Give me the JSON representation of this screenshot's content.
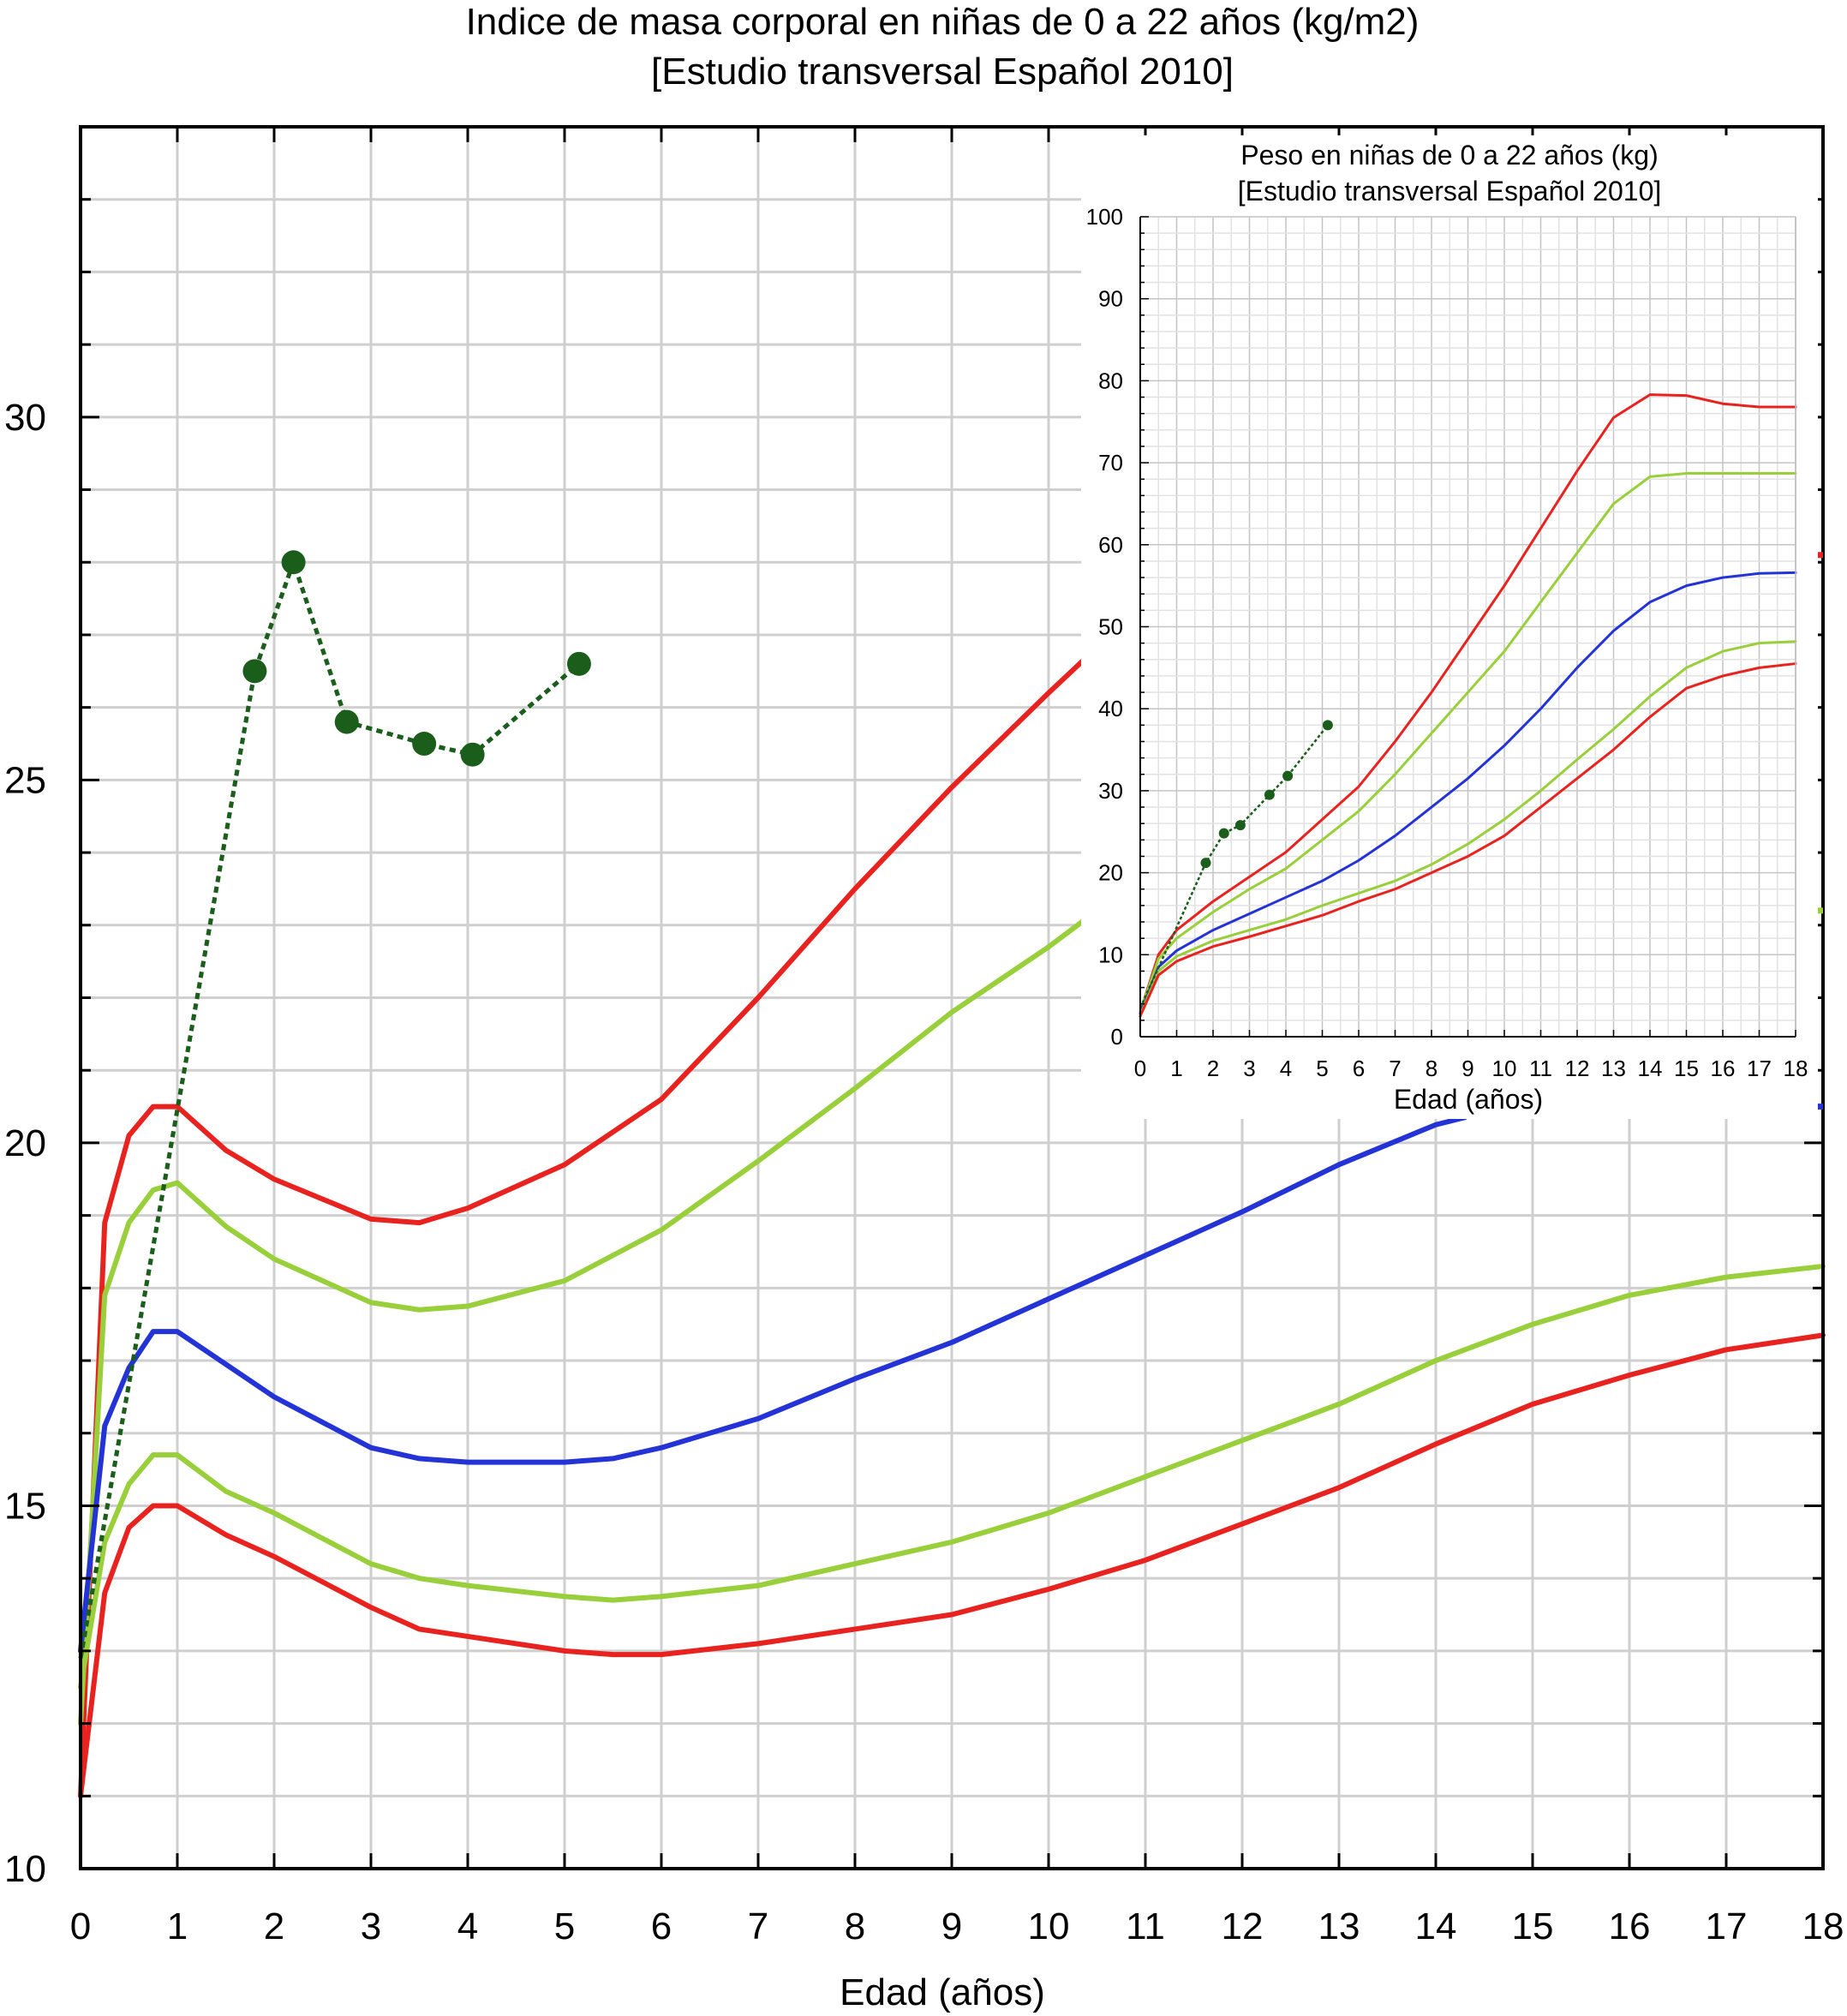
{
  "chart_data": [
    {
      "type": "line",
      "title": "Indice de masa corporal en niñas de 0 a 22 años (kg/m2)",
      "subtitle": "[Estudio transversal Español 2010]",
      "xlabel": "Edad (años)",
      "ylabel": "",
      "xlim": [
        0,
        18
      ],
      "ylim": [
        10,
        34
      ],
      "x_ticks": [
        "0",
        "1",
        "2",
        "3",
        "4",
        "5",
        "6",
        "7",
        "8",
        "9",
        "10",
        "11",
        "12",
        "13",
        "14",
        "15",
        "16",
        "17",
        "18"
      ],
      "y_ticks": [
        "10",
        "15",
        "20",
        "25",
        "30"
      ],
      "grid": true,
      "colors": {
        "red": "#e8231f",
        "green": "#98cf3a",
        "blue": "#2433d6",
        "patient": "#1b5e1b"
      },
      "series": [
        {
          "color": "red",
          "x": [
            0,
            0.25,
            0.5,
            0.75,
            1,
            1.5,
            2,
            3,
            3.5,
            4,
            5,
            6,
            7,
            8,
            9,
            10,
            10.4
          ],
          "y": [
            11,
            18.9,
            20.1,
            20.5,
            20.5,
            19.9,
            19.5,
            18.95,
            18.9,
            19.1,
            19.7,
            20.6,
            22,
            23.5,
            24.9,
            26.2,
            26.7
          ]
        },
        {
          "color": "green",
          "x": [
            0,
            0.25,
            0.5,
            0.75,
            1,
            1.5,
            2,
            3,
            3.5,
            4,
            5,
            6,
            7,
            8,
            9,
            10,
            10.4
          ],
          "y": [
            12,
            17.9,
            18.9,
            19.35,
            19.45,
            18.85,
            18.4,
            17.8,
            17.7,
            17.75,
            18.1,
            18.8,
            19.75,
            20.75,
            21.8,
            22.7,
            23.1
          ]
        },
        {
          "color": "blue",
          "x": [
            0,
            0.25,
            0.5,
            0.75,
            1,
            1.5,
            2,
            3,
            3.5,
            4,
            5,
            5.5,
            6,
            7,
            8,
            9,
            10,
            11,
            12,
            13,
            14,
            14.3
          ],
          "y": [
            13,
            16.1,
            16.9,
            17.4,
            17.4,
            16.95,
            16.5,
            15.8,
            15.65,
            15.6,
            15.6,
            15.65,
            15.8,
            16.2,
            16.75,
            17.25,
            17.85,
            18.45,
            19.05,
            19.7,
            20.25,
            20.35
          ]
        },
        {
          "color": "green",
          "x": [
            0,
            0.25,
            0.5,
            0.75,
            1,
            1.5,
            2,
            3,
            3.5,
            4,
            5,
            5.5,
            6,
            7,
            8,
            9,
            10,
            11,
            12,
            13,
            14,
            15,
            16,
            17,
            18
          ],
          "y": [
            12.5,
            14.5,
            15.3,
            15.7,
            15.7,
            15.2,
            14.9,
            14.2,
            14,
            13.9,
            13.75,
            13.7,
            13.75,
            13.9,
            14.2,
            14.5,
            14.9,
            15.4,
            15.9,
            16.4,
            17,
            17.5,
            17.9,
            18.15,
            18.3
          ]
        },
        {
          "color": "red",
          "x": [
            0,
            0.25,
            0.5,
            0.75,
            1,
            1.5,
            2,
            3,
            3.5,
            4,
            5,
            5.5,
            6,
            7,
            8,
            9,
            10,
            11,
            12,
            13,
            14,
            15,
            16,
            17,
            18
          ],
          "y": [
            11,
            13.8,
            14.7,
            15,
            15,
            14.6,
            14.3,
            13.6,
            13.3,
            13.2,
            13,
            12.95,
            12.95,
            13.1,
            13.3,
            13.5,
            13.85,
            14.25,
            14.75,
            15.25,
            15.85,
            16.4,
            16.8,
            17.15,
            17.35
          ]
        },
        {
          "color": "patient",
          "x": [
            0,
            1.8,
            2.2,
            2.75,
            3.55,
            4.05,
            5.15
          ],
          "y": [
            12.9,
            26.5,
            28,
            25.8,
            25.5,
            25.35,
            26.6
          ],
          "markers_from_index": 1
        }
      ],
      "right_edge_markers": [
        {
          "color": "red",
          "y": 28.1
        },
        {
          "color": "green",
          "y": 23.2
        },
        {
          "color": "blue",
          "y": 20.5
        }
      ]
    },
    {
      "type": "line",
      "title": "Peso en niñas de 0 a 22 años (kg)",
      "subtitle": "[Estudio transversal Español 2010]",
      "xlabel": "Edad (años)",
      "ylabel": "",
      "xlim": [
        0,
        18
      ],
      "ylim": [
        0,
        100
      ],
      "x_ticks": [
        "0",
        "1",
        "2",
        "3",
        "4",
        "5",
        "6",
        "7",
        "8",
        "9",
        "10",
        "11",
        "12",
        "13",
        "14",
        "15",
        "16",
        "17",
        "18"
      ],
      "y_ticks": [
        "0",
        "10",
        "20",
        "30",
        "40",
        "50",
        "60",
        "70",
        "80",
        "90",
        "100"
      ],
      "grid": true,
      "series": [
        {
          "color": "red",
          "x": [
            0,
            0.5,
            1,
            2,
            3,
            4,
            5,
            6,
            7,
            8,
            9,
            10,
            11,
            12,
            13,
            14,
            15,
            16,
            17,
            18
          ],
          "y": [
            3,
            10,
            13,
            16.5,
            19.5,
            22.5,
            26.5,
            30.5,
            36,
            42,
            48.5,
            55,
            62,
            69,
            75.5,
            78.3,
            78.2,
            77.2,
            76.8,
            76.8
          ]
        },
        {
          "color": "green",
          "x": [
            0,
            0.5,
            1,
            2,
            3,
            4,
            5,
            6,
            7,
            8,
            9,
            10,
            11,
            12,
            13,
            14,
            15,
            16,
            17,
            18
          ],
          "y": [
            3,
            9.5,
            12,
            15.2,
            18,
            20.5,
            24,
            27.5,
            32,
            37,
            42,
            47,
            53,
            59,
            65,
            68.3,
            68.7,
            68.7,
            68.7,
            68.7
          ]
        },
        {
          "color": "blue",
          "x": [
            0,
            0.5,
            1,
            2,
            3,
            4,
            5,
            6,
            7,
            8,
            9,
            10,
            11,
            12,
            13,
            14,
            15,
            16,
            17,
            18
          ],
          "y": [
            2.8,
            8.5,
            10.5,
            13,
            15,
            17,
            19,
            21.5,
            24.5,
            28,
            31.5,
            35.5,
            40,
            45,
            49.5,
            53,
            55,
            56,
            56.5,
            56.6
          ]
        },
        {
          "color": "green",
          "x": [
            0,
            0.5,
            1,
            2,
            3,
            4,
            5,
            6,
            7,
            8,
            9,
            10,
            11,
            12,
            13,
            14,
            15,
            16,
            17,
            18
          ],
          "y": [
            2.6,
            8,
            9.8,
            11.7,
            13,
            14.3,
            16,
            17.5,
            19,
            21,
            23.5,
            26.5,
            30,
            33.8,
            37.5,
            41.5,
            45,
            47,
            48,
            48.2
          ]
        },
        {
          "color": "red",
          "x": [
            0,
            0.5,
            1,
            2,
            3,
            4,
            5,
            6,
            7,
            8,
            9,
            10,
            11,
            12,
            13,
            14,
            15,
            16,
            17,
            18
          ],
          "y": [
            2.5,
            7.5,
            9.2,
            11,
            12.2,
            13.5,
            14.8,
            16.5,
            18,
            20,
            22,
            24.5,
            28,
            31.5,
            35,
            39,
            42.5,
            44,
            45,
            45.5
          ]
        },
        {
          "color": "patient",
          "x": [
            0,
            1.8,
            2.3,
            2.75,
            3.55,
            4.05,
            5.15
          ],
          "y": [
            3.5,
            21.2,
            24.8,
            25.8,
            29.5,
            31.8,
            38
          ],
          "markers_from_index": 1
        }
      ]
    }
  ]
}
